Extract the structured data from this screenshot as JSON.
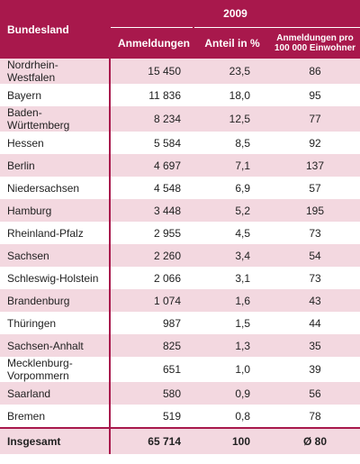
{
  "header": {
    "region": "Bundesland",
    "year": "2009",
    "columns": [
      "Anmeldungen",
      "Anteil in %",
      "Anmeldungen pro 100 000 Einwohner"
    ]
  },
  "rows": [
    [
      "Nordrhein-Westfalen",
      "15 450",
      "23,5",
      "86"
    ],
    [
      "Bayern",
      "11 836",
      "18,0",
      "95"
    ],
    [
      "Baden-Württemberg",
      "8 234",
      "12,5",
      "77"
    ],
    [
      "Hessen",
      "5 584",
      "8,5",
      "92"
    ],
    [
      "Berlin",
      "4 697",
      "7,1",
      "137"
    ],
    [
      "Niedersachsen",
      "4 548",
      "6,9",
      "57"
    ],
    [
      "Hamburg",
      "3 448",
      "5,2",
      "195"
    ],
    [
      "Rheinland-Pfalz",
      "2 955",
      "4,5",
      "73"
    ],
    [
      "Sachsen",
      "2 260",
      "3,4",
      "54"
    ],
    [
      "Schleswig-Holstein",
      "2 066",
      "3,1",
      "73"
    ],
    [
      "Brandenburg",
      "1 074",
      "1,6",
      "43"
    ],
    [
      "Thüringen",
      "987",
      "1,5",
      "44"
    ],
    [
      "Sachsen-Anhalt",
      "825",
      "1,3",
      "35"
    ],
    [
      "Mecklenburg-Vorpommern",
      "651",
      "1,0",
      "39"
    ],
    [
      "Saarland",
      "580",
      "0,9",
      "56"
    ],
    [
      "Bremen",
      "519",
      "0,8",
      "78"
    ]
  ],
  "total": [
    "Insgesamt",
    "65 714",
    "100",
    "Ø 80"
  ]
}
